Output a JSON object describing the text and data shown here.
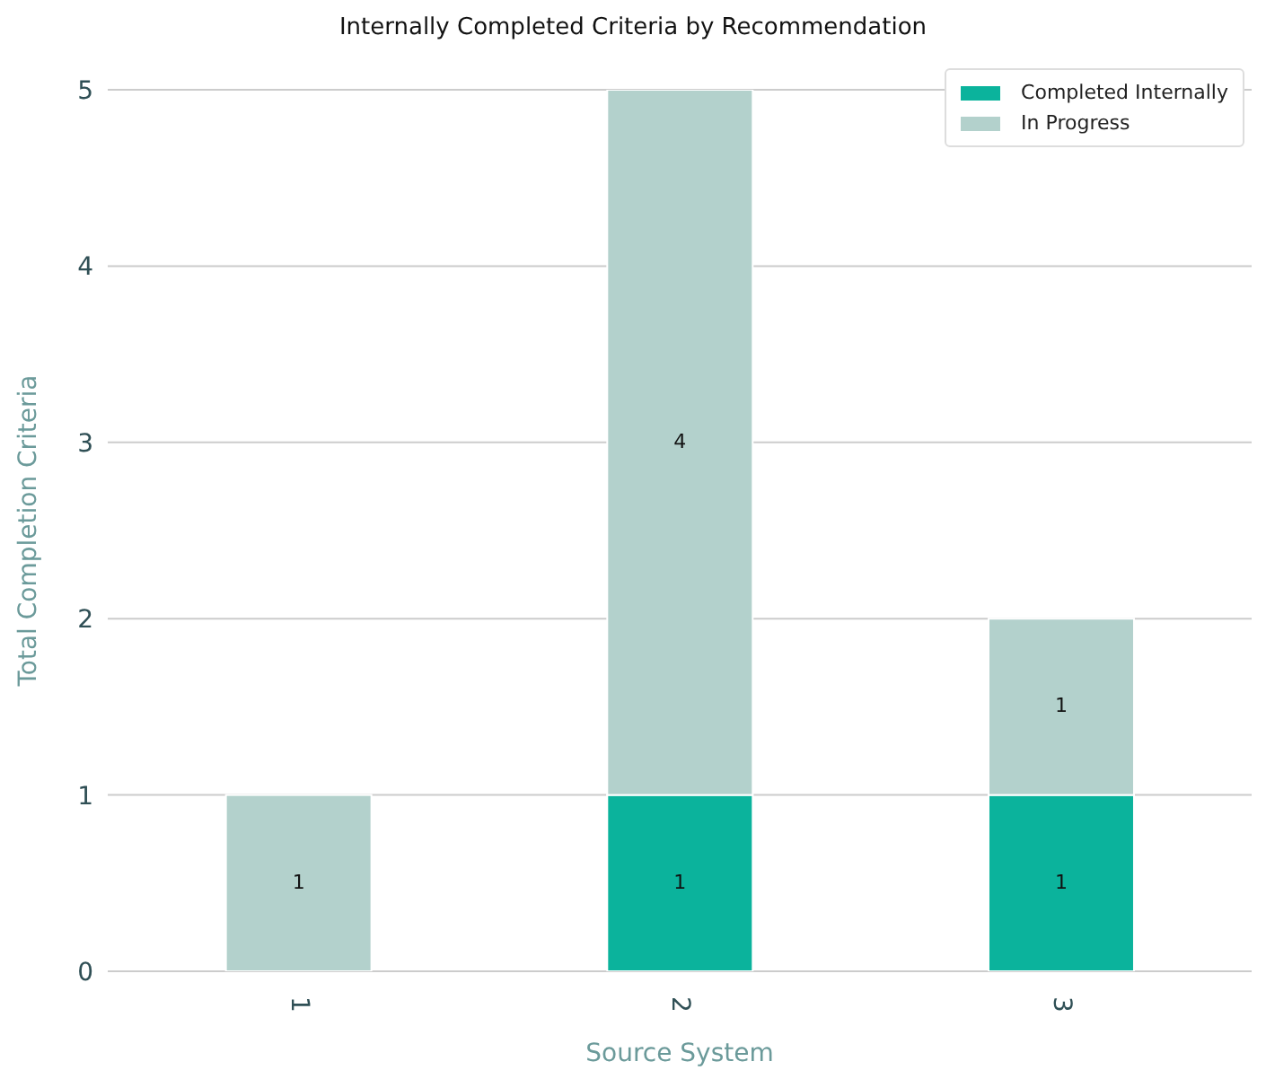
{
  "chart_data": {
    "type": "bar",
    "title": "Internally Completed Criteria by Recommendation",
    "xlabel": "Source System",
    "ylabel": "Total Completion Criteria",
    "categories": [
      "1",
      "2",
      "3"
    ],
    "stacked": true,
    "series": [
      {
        "name": "Completed Internally",
        "color": "#0bb39c",
        "values": [
          null,
          1,
          1
        ],
        "value_labels": [
          null,
          "1",
          "1"
        ]
      },
      {
        "name": "In Progress",
        "color": "#b3d1cc",
        "values": [
          1,
          4,
          1
        ],
        "value_labels": [
          "1",
          "4",
          "1"
        ]
      }
    ],
    "ylim": [
      0,
      5
    ],
    "yticks": [
      0,
      1,
      2,
      3,
      4,
      5
    ],
    "grid": "y",
    "legend": "top right"
  }
}
